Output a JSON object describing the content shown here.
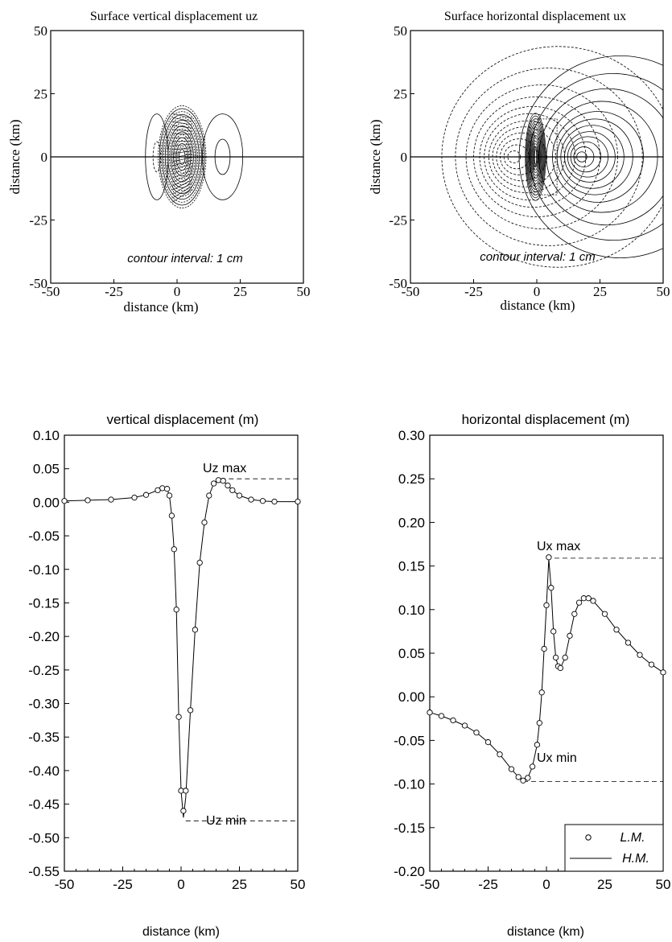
{
  "panels": [
    {
      "title": "Surface vertical displacement uz",
      "xlabel": "distance (km)",
      "ylabel": "distance (km)",
      "annotation": "contour interval: 1 cm",
      "xticks": [
        "-50",
        "-25",
        "0",
        "25",
        "50"
      ],
      "yticks": [
        "50",
        "25",
        "0",
        "-25",
        "-50"
      ]
    },
    {
      "title": "Surface horizontal displacement ux",
      "xlabel": "distance (km)",
      "ylabel": "distance (km)",
      "annotation": "contour interval: 1 cm",
      "xticks": [
        "-50",
        "-25",
        "0",
        "25",
        "50"
      ],
      "yticks": [
        "50",
        "25",
        "0",
        "-25",
        "-50"
      ]
    },
    {
      "title": "vertical displacement (m)",
      "xlabel": "distance (km)",
      "xticks": [
        "-50",
        "-25",
        "0",
        "25",
        "50"
      ],
      "yticks": [
        "0.10",
        "0.05",
        "0.00",
        "-0.05",
        "-0.10",
        "-0.15",
        "-0.20",
        "-0.25",
        "-0.30",
        "-0.35",
        "-0.40",
        "-0.45",
        "-0.50",
        "-0.55"
      ],
      "annotations": [
        "Uz max",
        "Uz min"
      ]
    },
    {
      "title": "horizontal displacement (m)",
      "xlabel": "distance (km)",
      "xticks": [
        "-50",
        "-25",
        "0",
        "25",
        "50"
      ],
      "yticks": [
        "0.30",
        "0.25",
        "0.20",
        "0.15",
        "0.10",
        "0.05",
        "0.00",
        "-0.05",
        "-0.10",
        "-0.15",
        "-0.20"
      ],
      "annotations": [
        "Ux max",
        "Ux min"
      ],
      "legend": [
        "L.M.",
        "H.M."
      ]
    }
  ],
  "chart_data": [
    {
      "type": "heatmap",
      "title": "Surface vertical displacement uz",
      "xlabel": "distance (km)",
      "ylabel": "distance (km)",
      "xlim": [
        -50,
        50
      ],
      "ylim": [
        -50,
        50
      ],
      "annotation": "contour interval: 1 cm"
    },
    {
      "type": "heatmap",
      "title": "Surface horizontal displacement ux",
      "xlabel": "distance (km)",
      "ylabel": "distance (km)",
      "xlim": [
        -50,
        50
      ],
      "ylim": [
        -50,
        50
      ],
      "annotation": "contour interval: 1 cm"
    },
    {
      "type": "line",
      "title": "vertical displacement (m)",
      "xlabel": "distance (km)",
      "xlim": [
        -50,
        50
      ],
      "ylim": [
        -0.55,
        0.1
      ],
      "series": [
        {
          "name": "L.M.",
          "x": [
            -50,
            -40,
            -30,
            -20,
            -15,
            -10,
            -8,
            -6,
            -5,
            -4,
            -3,
            -2,
            -1,
            0,
            1,
            2,
            4,
            6,
            8,
            10,
            12,
            14,
            16,
            18,
            20,
            22,
            25,
            30,
            35,
            40,
            50
          ],
          "y": [
            0.002,
            0.003,
            0.004,
            0.007,
            0.011,
            0.018,
            0.021,
            0.02,
            0.01,
            -0.02,
            -0.07,
            -0.16,
            -0.32,
            -0.43,
            -0.46,
            -0.43,
            -0.31,
            -0.19,
            -0.09,
            -0.03,
            0.01,
            0.028,
            0.033,
            0.032,
            0.025,
            0.018,
            0.01,
            0.004,
            0.002,
            0.001,
            0.001
          ]
        },
        {
          "name": "H.M.",
          "x": [
            -50,
            -40,
            -30,
            -20,
            -15,
            -10,
            -8,
            -6,
            -5,
            -4,
            -3,
            -2,
            -1,
            0,
            1,
            2,
            4,
            6,
            8,
            10,
            12,
            14,
            16,
            18,
            20,
            22,
            25,
            30,
            35,
            40,
            50
          ],
          "y": [
            0.002,
            0.003,
            0.004,
            0.007,
            0.011,
            0.018,
            0.021,
            0.02,
            0.01,
            -0.02,
            -0.07,
            -0.16,
            -0.32,
            -0.43,
            -0.47,
            -0.44,
            -0.31,
            -0.19,
            -0.09,
            -0.03,
            0.01,
            0.028,
            0.033,
            0.032,
            0.025,
            0.018,
            0.01,
            0.004,
            0.002,
            0.001,
            0.001
          ]
        }
      ],
      "reference_lines": [
        {
          "label": "Uz max",
          "y": 0.035,
          "x_from": 17,
          "x_to": 50
        },
        {
          "label": "Uz min",
          "y": -0.475,
          "x_from": 2,
          "x_to": 50
        }
      ]
    },
    {
      "type": "line",
      "title": "horizontal displacement (m)",
      "xlabel": "distance (km)",
      "xlim": [
        -50,
        50
      ],
      "ylim": [
        -0.2,
        0.3
      ],
      "series": [
        {
          "name": "L.M.",
          "x": [
            -50,
            -45,
            -40,
            -35,
            -30,
            -25,
            -20,
            -15,
            -12,
            -10,
            -8,
            -6,
            -4,
            -3,
            -2,
            -1,
            0,
            1,
            2,
            3,
            4,
            5,
            6,
            8,
            10,
            12,
            14,
            16,
            18,
            20,
            25,
            30,
            35,
            40,
            45,
            50
          ],
          "y": [
            -0.018,
            -0.022,
            -0.027,
            -0.033,
            -0.041,
            -0.052,
            -0.066,
            -0.083,
            -0.092,
            -0.096,
            -0.093,
            -0.08,
            -0.055,
            -0.03,
            0.005,
            0.055,
            0.105,
            0.16,
            0.125,
            0.075,
            0.045,
            0.035,
            0.033,
            0.045,
            0.07,
            0.095,
            0.108,
            0.113,
            0.113,
            0.11,
            0.095,
            0.077,
            0.062,
            0.048,
            0.037,
            0.028
          ]
        },
        {
          "name": "H.M.",
          "x": [
            -50,
            -45,
            -40,
            -35,
            -30,
            -25,
            -20,
            -15,
            -12,
            -10,
            -8,
            -6,
            -4,
            -3,
            -2,
            -1,
            0,
            1,
            2,
            3,
            4,
            5,
            6,
            8,
            10,
            12,
            14,
            16,
            18,
            20,
            25,
            30,
            35,
            40,
            45,
            50
          ],
          "y": [
            -0.018,
            -0.022,
            -0.027,
            -0.033,
            -0.041,
            -0.052,
            -0.066,
            -0.083,
            -0.092,
            -0.096,
            -0.093,
            -0.08,
            -0.055,
            -0.03,
            0.005,
            0.055,
            0.105,
            0.158,
            0.125,
            0.075,
            0.045,
            0.035,
            0.033,
            0.045,
            0.07,
            0.095,
            0.108,
            0.113,
            0.113,
            0.11,
            0.095,
            0.077,
            0.062,
            0.048,
            0.037,
            0.028
          ]
        }
      ],
      "reference_lines": [
        {
          "label": "Ux max",
          "y": 0.159,
          "x_from": 0,
          "x_to": 50
        },
        {
          "label": "Ux min",
          "y": -0.097,
          "x_from": -10,
          "x_to": 50
        }
      ]
    }
  ]
}
